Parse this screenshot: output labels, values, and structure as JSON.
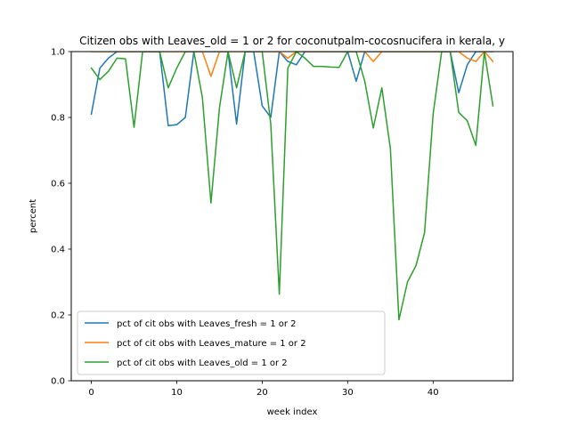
{
  "chart_data": {
    "type": "line",
    "title": "Citizen obs with Leaves_old = 1 or 2 for coconutpalm-cocosnucifera in kerala, y",
    "xlabel": "week index",
    "ylabel": "percent",
    "xlim": [
      -2.35,
      49.35
    ],
    "ylim": [
      0.0,
      1.0
    ],
    "xticks": [
      0,
      10,
      20,
      30,
      40
    ],
    "yticks": [
      0.0,
      0.2,
      0.4,
      0.6,
      0.8,
      1.0
    ],
    "xtick_labels": [
      "0",
      "10",
      "20",
      "30",
      "40"
    ],
    "ytick_labels": [
      "0.0",
      "0.2",
      "0.4",
      "0.6",
      "0.8",
      "1.0"
    ],
    "grid": false,
    "legend_position": "lower-left",
    "series": [
      {
        "name": "pct of cit obs with Leaves_fresh = 1 or 2",
        "color": "#1f77b4",
        "x": [
          0,
          1,
          2,
          3,
          4,
          5,
          6,
          7,
          8,
          9,
          10,
          11,
          12,
          13,
          14,
          15,
          16,
          17,
          18,
          19,
          20,
          21,
          22,
          23,
          24,
          25,
          26,
          27,
          28,
          29,
          30,
          31,
          32,
          33,
          34,
          35,
          36,
          37,
          38,
          39,
          40,
          41,
          42,
          43,
          44,
          45,
          46,
          47
        ],
        "y": [
          0.81,
          0.95,
          0.98,
          1.0,
          1.0,
          1.0,
          1.0,
          1.0,
          1.0,
          0.775,
          0.778,
          0.8,
          1.0,
          1.0,
          1.0,
          1.0,
          1.0,
          0.78,
          1.0,
          1.0,
          0.835,
          0.8,
          1.0,
          0.97,
          0.96,
          1.0,
          1.0,
          1.0,
          1.0,
          1.0,
          1.0,
          0.91,
          1.0,
          1.0,
          1.0,
          1.0,
          1.0,
          1.0,
          1.0,
          1.0,
          1.0,
          1.0,
          1.0,
          0.875,
          0.96,
          1.0,
          1.0,
          1.0
        ]
      },
      {
        "name": "pct of cit obs with Leaves_mature = 1 or 2",
        "color": "#ff7f0e",
        "x": [
          0,
          1,
          2,
          3,
          4,
          5,
          6,
          7,
          8,
          9,
          10,
          11,
          12,
          13,
          14,
          15,
          16,
          17,
          18,
          19,
          20,
          21,
          22,
          23,
          24,
          25,
          26,
          27,
          28,
          29,
          30,
          31,
          32,
          33,
          34,
          35,
          36,
          37,
          38,
          39,
          40,
          41,
          42,
          43,
          44,
          45,
          46,
          47
        ],
        "y": [
          1.0,
          1.0,
          1.0,
          1.0,
          1.0,
          1.0,
          1.0,
          1.0,
          1.0,
          1.0,
          1.0,
          1.0,
          1.0,
          1.0,
          0.925,
          1.0,
          1.0,
          1.0,
          1.0,
          1.0,
          1.0,
          1.0,
          1.0,
          0.98,
          1.0,
          1.0,
          1.0,
          1.0,
          1.0,
          1.0,
          1.0,
          1.0,
          1.0,
          0.97,
          1.0,
          1.0,
          1.0,
          1.0,
          1.0,
          1.0,
          1.0,
          1.0,
          1.0,
          1.0,
          0.98,
          0.97,
          1.0,
          0.97
        ]
      },
      {
        "name": "pct of cit obs with Leaves_old = 1 or 2",
        "color": "#2ca02c",
        "x": [
          0,
          1,
          2,
          3,
          4,
          5,
          6,
          7,
          8,
          9,
          10,
          11,
          12,
          13,
          14,
          15,
          16,
          17,
          18,
          19,
          20,
          21,
          22,
          23,
          24,
          25,
          26,
          27,
          28,
          29,
          30,
          31,
          32,
          33,
          34,
          35,
          36,
          37,
          38,
          39,
          40,
          41,
          42,
          43,
          44,
          45,
          46,
          47
        ],
        "y": [
          0.95,
          0.915,
          0.94,
          0.98,
          0.978,
          0.77,
          1.0,
          1.0,
          1.0,
          0.89,
          0.95,
          1.0,
          1.0,
          0.86,
          0.54,
          0.83,
          1.0,
          0.89,
          1.0,
          1.0,
          1.0,
          0.78,
          0.263,
          0.95,
          1.0,
          0.98,
          0.955,
          0.955,
          0.953,
          0.952,
          1.0,
          1.0,
          0.91,
          0.768,
          0.89,
          0.705,
          0.185,
          0.3,
          0.35,
          0.45,
          0.81,
          1.0,
          1.0,
          0.815,
          0.79,
          0.715,
          1.0,
          0.835
        ]
      }
    ]
  }
}
